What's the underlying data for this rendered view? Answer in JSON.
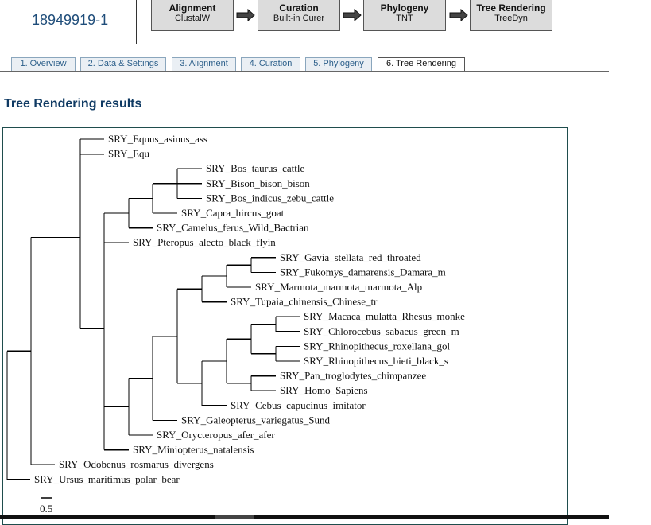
{
  "header": {
    "job_id": "18949919-1"
  },
  "pipeline": [
    {
      "title": "Alignment",
      "sub": "ClustalW"
    },
    {
      "title": "Curation",
      "sub": "Built-in Curer"
    },
    {
      "title": "Phylogeny",
      "sub": "TNT"
    },
    {
      "title": "Tree Rendering",
      "sub": "TreeDyn"
    }
  ],
  "tabs": [
    {
      "label": "1. Overview"
    },
    {
      "label": "2. Data & Settings"
    },
    {
      "label": "3. Alignment"
    },
    {
      "label": "4. Curation"
    },
    {
      "label": "5. Phylogeny"
    },
    {
      "label": "6. Tree Rendering",
      "active": true
    }
  ],
  "section_title": "Tree Rendering results",
  "tree": {
    "leaves": [
      "SRY_Equus_asinus_ass",
      "SRY_Equ",
      "SRY_Bos_taurus_cattle",
      "SRY_Bison_bison_bison",
      "SRY_Bos_indicus_zebu_cattle",
      "SRY_Capra_hircus_goat",
      "SRY_Camelus_ferus_Wild_Bactrian",
      "SRY_Pteropus_alecto_black_flyin",
      "SRY_Gavia_stellata_red_throated",
      "SRY_Fukomys_damarensis_Damara_m",
      "SRY_Marmota_marmota_marmota_Alp",
      "SRY_Tupaia_chinensis_Chinese_tr",
      "SRY_Macaca_mulatta_Rhesus_monke",
      "SRY_Chlorocebus_sabaeus_green_m",
      "SRY_Rhinopithecus_roxellana_gol",
      "SRY_Rhinopithecus_bieti_black_s",
      "SRY_Pan_troglodytes_chimpanzee",
      "SRY_Homo_Sapiens",
      "SRY_Cebus_capucinus_imitator",
      "SRY_Galeopterus_variegatus_Sund",
      "SRY_Orycteropus_afer_afer",
      "SRY_Miniopterus_natalensis",
      "SRY_Odobenus_rosmarus_divergens",
      "SRY_Ursus_maritimus_polar_bear"
    ],
    "scale_label": "0.5"
  }
}
